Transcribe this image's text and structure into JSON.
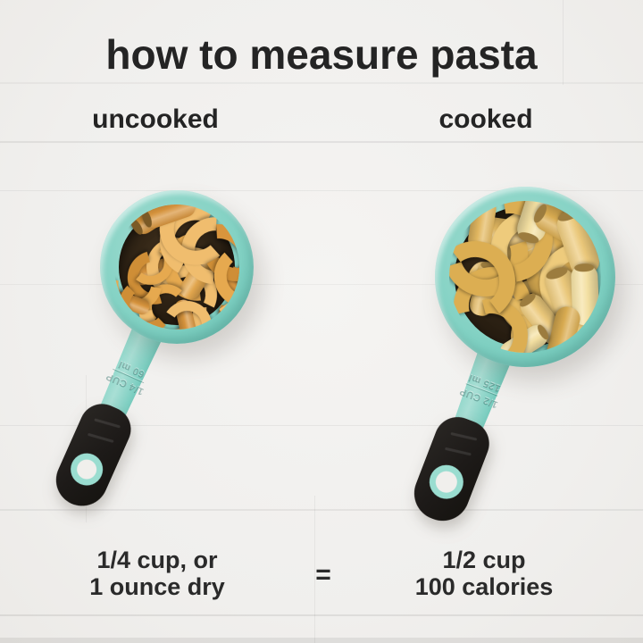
{
  "title": "how to measure pasta",
  "equals_sign": "=",
  "columns": {
    "left": {
      "label": "uncooked",
      "caption_line1": "1/4 cup, or",
      "caption_line2": "1 ounce dry",
      "cup_size_label": "1/4 CUP",
      "cup_ml_label": "60 ml"
    },
    "right": {
      "label": "cooked",
      "caption_line1": "1/2 cup",
      "caption_line2": "100 calories",
      "cup_size_label": "1/2 CUP",
      "cup_ml_label": "125 ml"
    }
  },
  "colors": {
    "background": "#f0efed",
    "text": "#242424",
    "cup_teal": "#7ccfc2",
    "cup_teal_light": "#a9dfd5",
    "cup_teal_dark": "#58b3a5",
    "cup_interior": "#251c12",
    "grip_black": "#1d1a18",
    "dry_pasta": [
      "#e6a94f",
      "#d9953d",
      "#f0bd6e",
      "#cf8e36"
    ],
    "dry_pasta_hole": "#7b5a26",
    "cooked_pasta": [
      "#eecb7c",
      "#e5ba62",
      "#f6e2a3",
      "#dcae52"
    ],
    "cooked_pasta_hole": "#9c7c3e"
  }
}
